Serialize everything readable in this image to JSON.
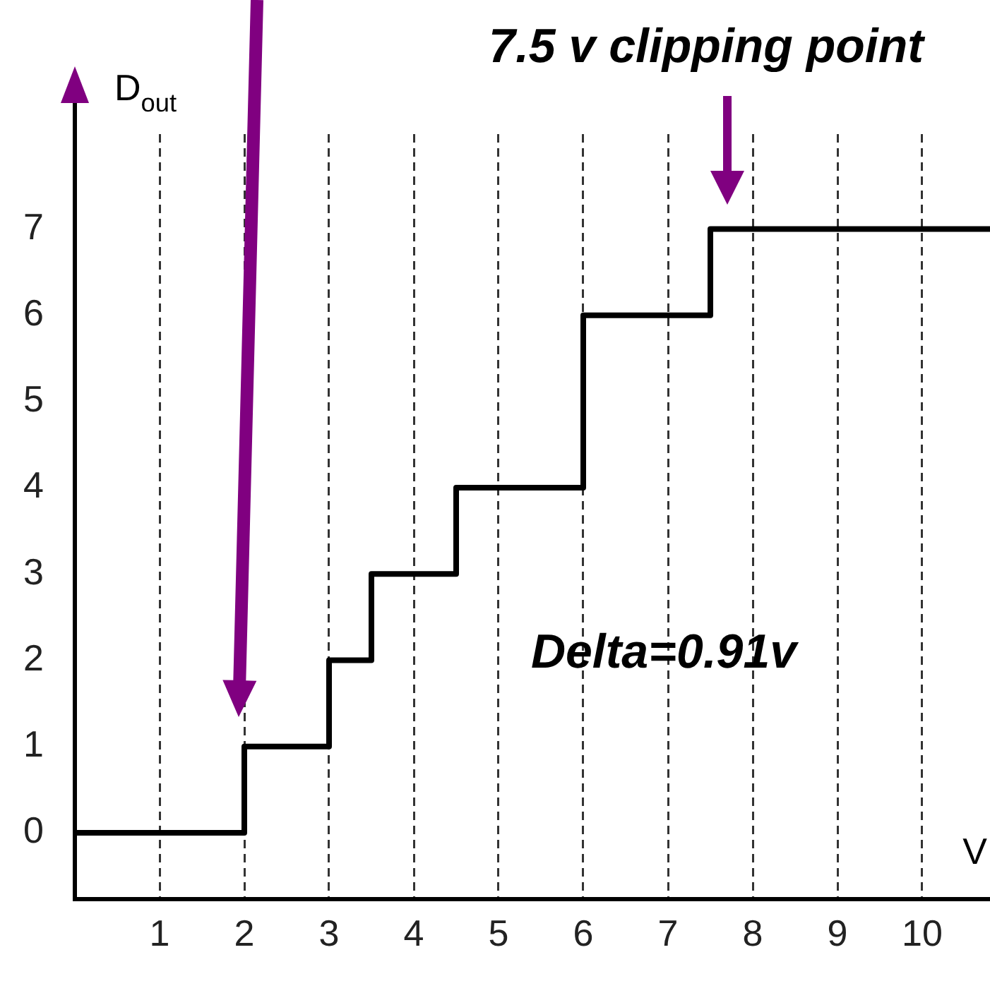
{
  "chart_data": {
    "type": "step",
    "xlabel": "V",
    "ylabel": "D$_{out}$",
    "x": [
      0,
      2,
      3,
      3.5,
      4.5,
      6,
      7.5,
      10.8
    ],
    "series": [
      {
        "color": "#000000",
        "values": [
          0,
          1,
          2,
          3,
          4,
          6,
          7,
          7
        ]
      }
    ],
    "xlim": [
      0,
      10.8
    ],
    "xticks": [
      1,
      2,
      3,
      4,
      5,
      6,
      7,
      8,
      9,
      10
    ],
    "ylim": [
      -0.77,
      8.1
    ],
    "yticks": [
      0,
      1,
      2,
      3,
      4,
      5,
      6,
      7
    ],
    "grid": "x",
    "legend": false,
    "marker": "none",
    "line_style": "solid",
    "annotations": [
      "7.5 v clipping point",
      "Delta=0.91v"
    ]
  }
}
